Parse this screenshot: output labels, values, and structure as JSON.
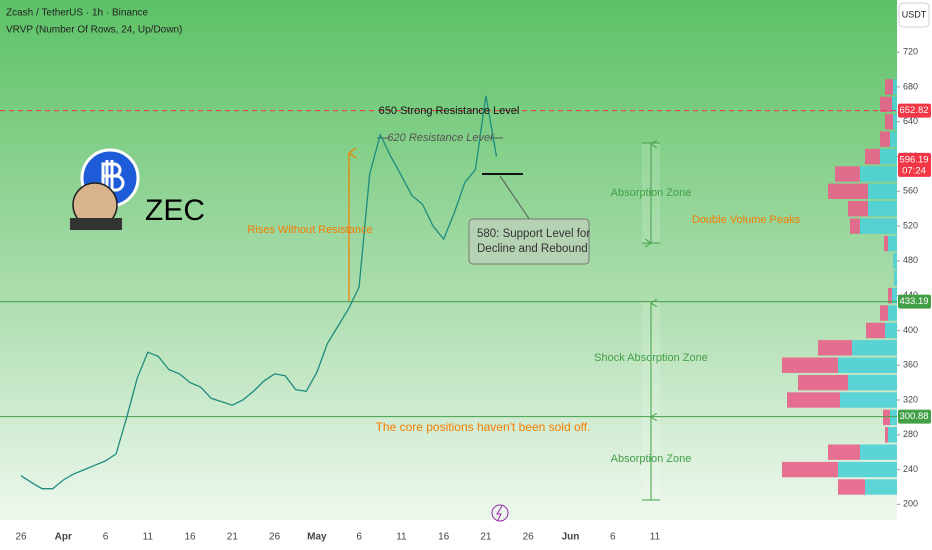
{
  "chart_data": {
    "type": "line",
    "title": "Zcash / TetherUS · 1h · Binance",
    "subtitle": "VRVP (Number Of Rows, 24, Up/Down)",
    "currency": "USDT",
    "logo_text": "ZEC",
    "categories": [
      "26",
      null,
      null,
      null,
      "Apr",
      null,
      null,
      null,
      "6",
      null,
      null,
      null,
      "11",
      null,
      null,
      null,
      "16",
      null,
      null,
      null,
      "21",
      null,
      null,
      null,
      "26",
      null,
      null,
      null,
      "May",
      null,
      null,
      null,
      "6",
      null,
      null,
      null,
      "11",
      null,
      null,
      null,
      "16",
      null,
      null,
      null,
      "21",
      null,
      null,
      null,
      "26",
      null,
      null,
      null,
      "Jun",
      null,
      null,
      null,
      "6",
      null,
      null,
      null,
      "11"
    ],
    "series": [
      {
        "color": "#1e8c7e",
        "values": [
          233,
          225,
          218,
          218,
          228,
          235,
          240,
          245,
          250,
          258,
          300,
          345,
          375,
          370,
          355,
          350,
          340,
          335,
          322,
          318,
          314,
          320,
          330,
          342,
          350,
          348,
          332,
          330,
          352,
          385,
          405,
          425,
          450,
          580,
          625,
          600,
          578,
          555,
          545,
          520,
          505,
          535,
          570,
          585,
          670,
          600,
          null,
          null,
          null,
          null,
          null,
          null,
          null,
          null,
          null,
          null,
          null,
          null,
          null,
          null,
          null
        ]
      }
    ],
    "ylim": [
      182,
      780
    ],
    "yticks": [
      200,
      240,
      280,
      320,
      360,
      400,
      440,
      480,
      520,
      560,
      600,
      640,
      680,
      720
    ],
    "levels": [
      {
        "value": 652.82,
        "color": "#f23645",
        "style": "dashed"
      },
      {
        "value": 433.19,
        "color": "#43a047",
        "style": "solid"
      },
      {
        "value": 300.88,
        "color": "#43a047",
        "style": "solid"
      }
    ],
    "last_price": 596.19,
    "last_price_color": "#f23645",
    "countdown": "07:24",
    "annotations": [
      "650 Strong Resistance Level",
      "620 Resistance Level",
      "Rises Without Resistance",
      "Absorption Zone",
      "Double Volume Peaks",
      "Shock Absorption Zone",
      "The core positions haven't been sold off.",
      "Absorption Zone"
    ],
    "callout": [
      "580: Support Level for",
      "Decline and Rebound"
    ],
    "volume_profile": {
      "type": "bar",
      "bins": [
        210,
        230,
        250,
        270,
        290,
        310,
        330,
        350,
        370,
        390,
        410,
        430,
        450,
        470,
        490,
        510,
        530,
        550,
        570,
        590,
        610,
        630,
        650,
        670,
        690
      ],
      "series": [
        {
          "color": "#4dd0d6",
          "values": [
            32,
            59,
            37,
            9,
            7,
            57,
            49,
            59,
            45,
            12,
            9,
            5,
            3,
            4,
            9,
            37,
            29,
            29,
            37,
            17,
            7,
            4,
            5,
            4
          ]
        },
        {
          "color": "#e8608a",
          "values": [
            27,
            56,
            32,
            3,
            7,
            53,
            50,
            56,
            34,
            19,
            8,
            4,
            0,
            0,
            4,
            10,
            20,
            40,
            25,
            15,
            10,
            8,
            12,
            8
          ]
        }
      ]
    }
  }
}
